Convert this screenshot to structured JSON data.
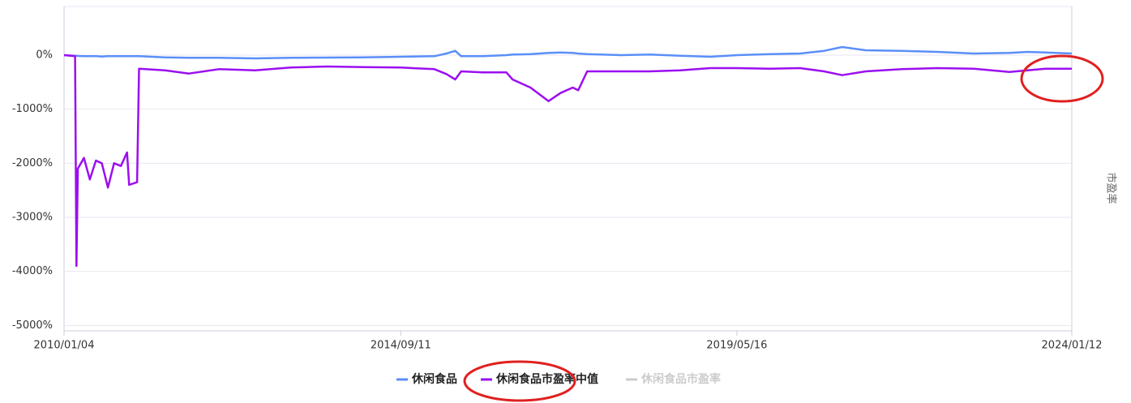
{
  "chart_data": {
    "type": "line",
    "y_axis_label": "市盈率",
    "x": [
      "2010/01/04",
      "2010/03/01",
      "2010/03/08",
      "2010/03/15",
      "2010/04/15",
      "2010/05/15",
      "2010/06/15",
      "2010/07/15",
      "2010/08/15",
      "2010/09/15",
      "2010/10/20",
      "2010/11/20",
      "2010/12/01",
      "2011/01/10",
      "2011/01/20",
      "2011/06/01",
      "2011/10/01",
      "2012/03/01",
      "2012/09/01",
      "2013/03/01",
      "2013/09/01",
      "2014/03/01",
      "2014/09/11",
      "2015/03/01",
      "2015/05/01",
      "2015/06/15",
      "2015/07/15",
      "2015/11/01",
      "2016/03/01",
      "2016/04/01",
      "2016/07/01",
      "2016/10/01",
      "2016/12/01",
      "2017/02/01",
      "2017/03/01",
      "2017/04/15",
      "2017/10/01",
      "2018/03/01",
      "2018/08/01",
      "2019/01/01",
      "2019/05/16",
      "2019/11/01",
      "2020/04/01",
      "2020/08/01",
      "2020/11/01",
      "2021/03/01",
      "2021/09/01",
      "2022/03/01",
      "2022/09/01",
      "2023/03/01",
      "2023/06/01",
      "2023/09/01",
      "2024/01/12"
    ],
    "series": [
      {
        "name": "休闲食品",
        "color": "#5b8ff9",
        "values": [
          0,
          -10,
          -10,
          -15,
          -20,
          -20,
          -20,
          -25,
          -20,
          -20,
          -20,
          -20,
          -20,
          -20,
          -20,
          -40,
          -50,
          -50,
          -60,
          -50,
          -45,
          -40,
          -30,
          -20,
          30,
          80,
          -20,
          -20,
          0,
          10,
          20,
          40,
          50,
          40,
          30,
          20,
          0,
          10,
          -10,
          -30,
          0,
          20,
          30,
          80,
          150,
          90,
          80,
          60,
          30,
          40,
          60,
          50,
          30
        ]
      },
      {
        "name": "休闲食品市盈率中值",
        "color": "#9b0ff0",
        "values": [
          0,
          -20,
          -3900,
          -2100,
          -1900,
          -2300,
          -1950,
          -2000,
          -2450,
          -2000,
          -2050,
          -1800,
          -2400,
          -2350,
          -250,
          -280,
          -340,
          -260,
          -280,
          -230,
          -210,
          -220,
          -230,
          -260,
          -350,
          -450,
          -300,
          -320,
          -320,
          -450,
          -600,
          -850,
          -700,
          -600,
          -650,
          -300,
          -300,
          -300,
          -280,
          -240,
          -240,
          -250,
          -240,
          -300,
          -370,
          -300,
          -260,
          -240,
          -250,
          -310,
          -280,
          -250,
          -250
        ]
      },
      {
        "name": "休闲食品市盈率",
        "color": "#cccccc",
        "visible": false
      }
    ],
    "xlim": [
      "2010/01/04",
      "2024/01/12"
    ],
    "xticks": [
      "2010/01/04",
      "2014/09/11",
      "2019/05/16",
      "2024/01/12"
    ],
    "ylim": [
      -5100,
      900
    ],
    "yticks": [
      {
        "value": 0,
        "label": "0%"
      },
      {
        "value": -1000,
        "label": "-1000%"
      },
      {
        "value": -2000,
        "label": "-2000%"
      },
      {
        "value": -3000,
        "label": "-3000%"
      },
      {
        "value": -4000,
        "label": "-4000%"
      },
      {
        "value": -5000,
        "label": "-5000%"
      }
    ],
    "grid": true
  }
}
